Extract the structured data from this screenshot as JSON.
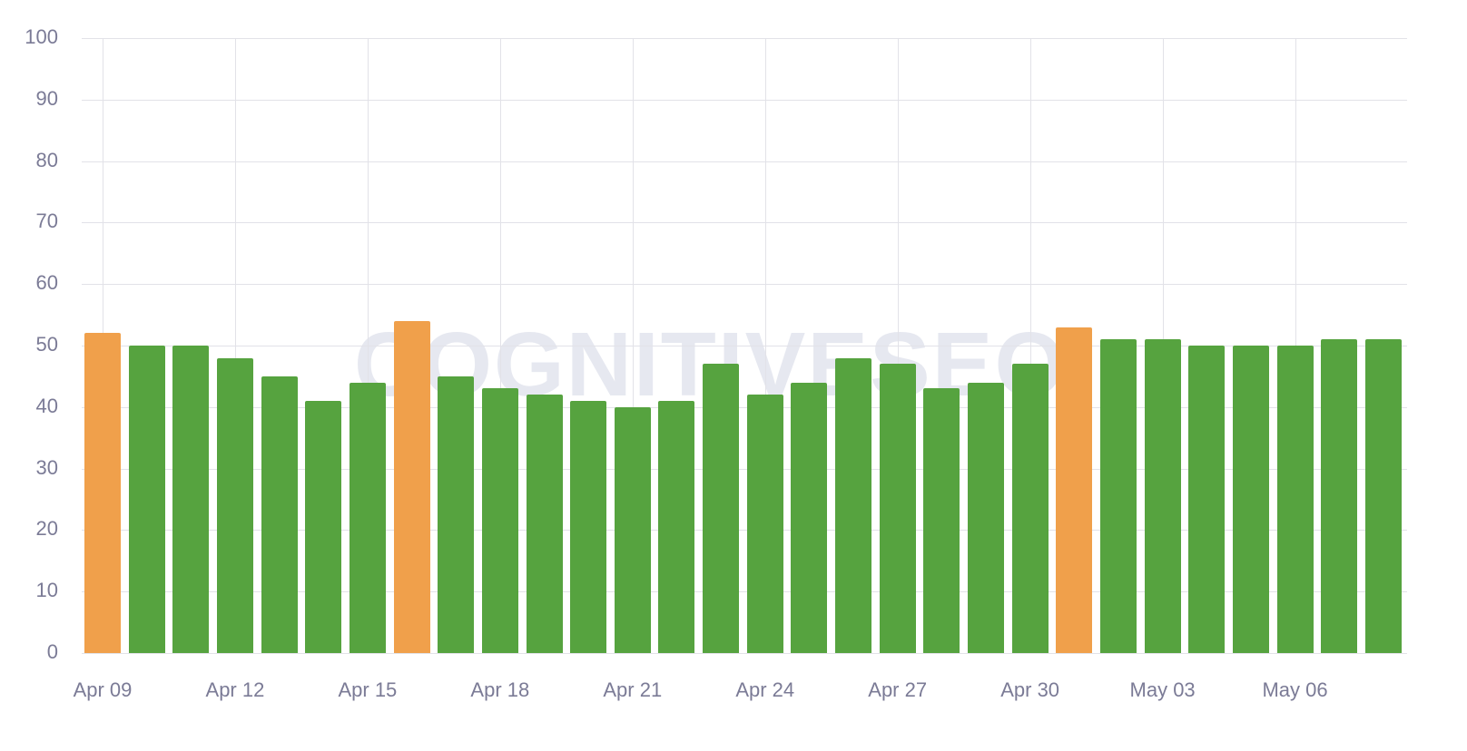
{
  "watermark": "COGNITIVESEO",
  "colors": {
    "normal": "#56a33f",
    "highlight": "#f0a04b",
    "grid": "#e2e2e8",
    "text": "#7b7b96"
  },
  "chart_data": {
    "type": "bar",
    "title": "",
    "xlabel": "",
    "ylabel": "",
    "ylim": [
      0,
      100
    ],
    "yticks": [
      0,
      10,
      20,
      30,
      40,
      50,
      60,
      70,
      80,
      90,
      100
    ],
    "xtick_labels": [
      "Apr 09",
      "Apr 12",
      "Apr 15",
      "Apr 18",
      "Apr 21",
      "Apr 24",
      "Apr 27",
      "Apr 30",
      "May 03",
      "May 06"
    ],
    "grid": true,
    "legend": null,
    "categories": [
      "Apr 09",
      "Apr 10",
      "Apr 11",
      "Apr 12",
      "Apr 13",
      "Apr 14",
      "Apr 15",
      "Apr 16",
      "Apr 17",
      "Apr 18",
      "Apr 19",
      "Apr 20",
      "Apr 21",
      "Apr 22",
      "Apr 23",
      "Apr 24",
      "Apr 25",
      "Apr 26",
      "Apr 27",
      "Apr 28",
      "Apr 29",
      "Apr 30",
      "May 01",
      "May 02",
      "May 03",
      "May 04",
      "May 05",
      "May 06",
      "May 07",
      "May 08"
    ],
    "values": [
      52,
      50,
      50,
      48,
      45,
      41,
      44,
      54,
      45,
      43,
      42,
      41,
      40,
      41,
      47,
      42,
      44,
      48,
      47,
      43,
      44,
      47,
      53,
      51,
      51,
      50,
      50,
      50,
      51,
      51
    ],
    "highlighted": [
      "Apr 09",
      "Apr 16",
      "May 01"
    ]
  }
}
